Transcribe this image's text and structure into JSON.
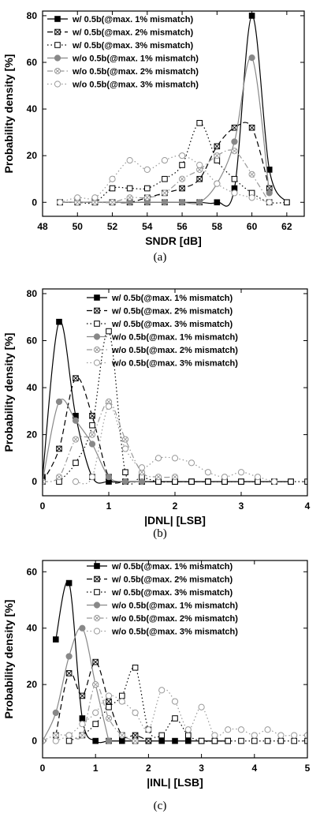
{
  "chart_data": [
    {
      "type": "line",
      "caption": "(a)",
      "xlabel": "SNDR [dB]",
      "ylabel": "Probability density [%]",
      "xlim": [
        48,
        63
      ],
      "ylim": [
        -6,
        82
      ],
      "xticks": [
        48,
        50,
        52,
        54,
        56,
        58,
        60,
        62
      ],
      "yticks": [
        0,
        20,
        40,
        60,
        80
      ],
      "xtick_labels": [
        "48",
        "50",
        "52",
        "54",
        "56",
        "58",
        "60",
        "62"
      ],
      "ytick_labels": [
        "0",
        "20",
        "40",
        "60",
        "80"
      ],
      "legend_position": "top-left",
      "series": [
        {
          "name": "w/ 0.5b(@max. 1% mismatch)",
          "line": "solid",
          "color": "#000000",
          "marker": "square-filled",
          "x": [
            49,
            50,
            51,
            52,
            53,
            54,
            55,
            56,
            57,
            58,
            59,
            60,
            61,
            62
          ],
          "y": [
            0,
            0,
            0,
            0,
            0,
            0,
            0,
            0,
            0,
            0,
            6,
            80,
            14,
            0
          ]
        },
        {
          "name": "w/ 0.5b(@max. 2% mismatch)",
          "line": "dashed",
          "color": "#000000",
          "marker": "square-x",
          "x": [
            49,
            50,
            51,
            52,
            53,
            54,
            55,
            56,
            57,
            58,
            59,
            60,
            61
          ],
          "y": [
            0,
            0,
            0,
            0,
            0,
            2,
            4,
            6,
            10,
            24,
            32,
            32,
            6
          ]
        },
        {
          "name": "w/ 0.5b(@max. 3% mismatch)",
          "line": "dotted",
          "color": "#000000",
          "marker": "square-open",
          "x": [
            49,
            50,
            51,
            52,
            53,
            54,
            55,
            56,
            57,
            58,
            59,
            60,
            61,
            62
          ],
          "y": [
            0,
            0,
            0,
            6,
            6,
            6,
            10,
            16,
            34,
            18,
            10,
            4,
            0,
            0
          ]
        },
        {
          "name": "w/o 0.5b(@max. 1% mismatch)",
          "line": "solid",
          "color": "#888888",
          "marker": "circle-filled",
          "x": [
            49,
            50,
            51,
            52,
            53,
            54,
            55,
            56,
            57,
            58,
            59,
            60,
            61
          ],
          "y": [
            0,
            0,
            0,
            0,
            0,
            0,
            0,
            0,
            0,
            8,
            26,
            62,
            4
          ]
        },
        {
          "name": "w/o 0.5b(@max. 2% mismatch)",
          "line": "dashdot",
          "color": "#999999",
          "marker": "circle-x",
          "x": [
            49,
            50,
            51,
            52,
            53,
            54,
            55,
            56,
            57,
            58,
            59,
            60,
            61
          ],
          "y": [
            0,
            0,
            0,
            0,
            2,
            2,
            4,
            10,
            14,
            20,
            22,
            12,
            0
          ]
        },
        {
          "name": "w/o 0.5b(@max. 3% mismatch)",
          "line": "dotted",
          "color": "#999999",
          "marker": "circle-open",
          "x": [
            49,
            50,
            51,
            52,
            53,
            54,
            55,
            56,
            57,
            58,
            59,
            60,
            61
          ],
          "y": [
            0,
            2,
            2,
            10,
            18,
            14,
            18,
            20,
            16,
            8,
            4,
            2,
            0
          ]
        }
      ]
    },
    {
      "type": "line",
      "caption": "(b)",
      "xlabel": "|DNL| [LSB]",
      "ylabel": "Probability density [%]",
      "xlim": [
        0,
        4
      ],
      "ylim": [
        -6,
        82
      ],
      "xticks": [
        0,
        1,
        2,
        3,
        4
      ],
      "yticks": [
        0,
        20,
        40,
        60,
        80
      ],
      "xtick_labels": [
        "0",
        "1",
        "2",
        "3",
        "4"
      ],
      "ytick_labels": [
        "0",
        "20",
        "40",
        "60",
        "80"
      ],
      "legend_position": "top-right",
      "series": [
        {
          "name": "w/ 0.5b(@max. 1% mismatch)",
          "line": "solid",
          "color": "#000000",
          "marker": "square-filled",
          "x": [
            0,
            0.25,
            0.5,
            0.75,
            1.0,
            1.25,
            1.5,
            1.75,
            2.0,
            2.25,
            2.5,
            2.75,
            3.0,
            3.25,
            3.5,
            3.75
          ],
          "y": [
            2,
            68,
            28,
            2,
            0,
            0,
            0,
            0,
            0,
            0,
            0,
            0,
            0,
            0,
            0,
            0
          ]
        },
        {
          "name": "w/ 0.5b(@max. 2% mismatch)",
          "line": "dashed",
          "color": "#000000",
          "marker": "square-x",
          "x": [
            0,
            0.25,
            0.5,
            0.75,
            1.0,
            1.25,
            1.5,
            1.75,
            2.0,
            2.25,
            2.5
          ],
          "y": [
            0,
            14,
            44,
            28,
            2,
            0,
            0,
            0,
            0,
            0,
            0
          ]
        },
        {
          "name": "w/ 0.5b(@max. 3% mismatch)",
          "line": "dotted",
          "color": "#000000",
          "marker": "square-open",
          "x": [
            0.25,
            0.5,
            0.75,
            1.0,
            1.25,
            1.5,
            1.75,
            2.0,
            2.25,
            2.5,
            2.75,
            3.0,
            3.25,
            3.5,
            3.75,
            4.0
          ],
          "y": [
            0,
            8,
            24,
            64,
            4,
            2,
            0,
            0,
            0,
            0,
            0,
            0,
            0,
            0,
            0,
            0
          ]
        },
        {
          "name": "w/o 0.5b(@max. 1% mismatch)",
          "line": "solid",
          "color": "#888888",
          "marker": "circle-filled",
          "x": [
            0,
            0.25,
            0.5,
            0.75,
            1.0,
            1.25,
            1.5
          ],
          "y": [
            0,
            34,
            26,
            16,
            2,
            0,
            0
          ]
        },
        {
          "name": "w/o 0.5b(@max. 2% mismatch)",
          "line": "dashdot",
          "color": "#999999",
          "marker": "circle-x",
          "x": [
            0,
            0.25,
            0.5,
            0.75,
            1.0,
            1.25,
            1.5,
            1.75,
            2.0
          ],
          "y": [
            0,
            2,
            18,
            20,
            34,
            18,
            4,
            2,
            2
          ]
        },
        {
          "name": "w/o 0.5b(@max. 3% mismatch)",
          "line": "dotted",
          "color": "#999999",
          "marker": "circle-open",
          "x": [
            0.5,
            0.75,
            1.0,
            1.25,
            1.5,
            1.75,
            2.0,
            2.25,
            2.5,
            2.75,
            3.0,
            3.25,
            3.5
          ],
          "y": [
            0,
            2,
            32,
            14,
            6,
            10,
            10,
            8,
            4,
            2,
            4,
            2,
            0
          ]
        }
      ]
    },
    {
      "type": "line",
      "caption": "(c)",
      "xlabel": "|INL| [LSB]",
      "ylabel": "Probability density [%]",
      "xlim": [
        0,
        5
      ],
      "ylim": [
        -6,
        64
      ],
      "xticks": [
        0,
        1,
        2,
        3,
        4,
        5
      ],
      "yticks": [
        0,
        20,
        40,
        60
      ],
      "xtick_labels": [
        "0",
        "1",
        "2",
        "3",
        "4",
        "5"
      ],
      "ytick_labels": [
        "0",
        "20",
        "40",
        "60"
      ],
      "legend_position": "top-right",
      "series": [
        {
          "name": "w/ 0.5b(@max. 1% mismatch)",
          "line": "solid",
          "color": "#000000",
          "marker": "square-filled",
          "x": [
            0.25,
            0.5,
            0.75,
            1.0,
            1.25,
            1.5,
            1.75,
            2.0,
            2.25,
            2.5,
            2.75,
            3.0,
            3.25,
            3.5
          ],
          "y": [
            36,
            56,
            8,
            0,
            0,
            0,
            0,
            0,
            0,
            0,
            0,
            0,
            0,
            0
          ]
        },
        {
          "name": "w/ 0.5b(@max. 2% mismatch)",
          "line": "dashed",
          "color": "#000000",
          "marker": "square-x",
          "x": [
            0.25,
            0.5,
            0.75,
            1.0,
            1.25,
            1.5,
            1.75,
            2.0
          ],
          "y": [
            2,
            24,
            16,
            28,
            14,
            2,
            2,
            0
          ]
        },
        {
          "name": "w/ 0.5b(@max. 3% mismatch)",
          "line": "dotted",
          "color": "#000000",
          "marker": "square-open",
          "x": [
            0.5,
            0.75,
            1.0,
            1.25,
            1.5,
            1.75,
            2.0,
            2.25,
            2.5,
            2.75,
            3.0,
            3.25,
            3.5,
            3.75,
            4.0,
            4.25,
            4.5,
            4.75,
            5.0
          ],
          "y": [
            0,
            2,
            6,
            12,
            16,
            26,
            4,
            2,
            8,
            2,
            0,
            0,
            0,
            0,
            0,
            0,
            0,
            0,
            0
          ]
        },
        {
          "name": "w/o 0.5b(@max. 1% mismatch)",
          "line": "solid",
          "color": "#888888",
          "marker": "circle-filled",
          "x": [
            0,
            0.25,
            0.5,
            0.75,
            1.0,
            1.25
          ],
          "y": [
            0,
            10,
            30,
            40,
            20,
            0
          ]
        },
        {
          "name": "w/o 0.5b(@max. 2% mismatch)",
          "line": "dashdot",
          "color": "#999999",
          "marker": "circle-x",
          "x": [
            0,
            0.25,
            0.5,
            0.75,
            1.0,
            1.25,
            1.5,
            1.75
          ],
          "y": [
            0,
            2,
            2,
            2,
            20,
            8,
            2,
            0
          ]
        },
        {
          "name": "w/o 0.5b(@max. 3% mismatch)",
          "line": "dotted",
          "color": "#999999",
          "marker": "circle-open",
          "x": [
            0.25,
            0.5,
            0.75,
            1.0,
            1.25,
            1.5,
            1.75,
            2.0,
            2.25,
            2.5,
            2.75,
            3.0,
            3.25,
            3.5,
            3.75,
            4.0,
            4.25,
            4.5,
            4.75,
            5.0
          ],
          "y": [
            0,
            2,
            6,
            10,
            16,
            14,
            10,
            4,
            18,
            14,
            4,
            12,
            2,
            4,
            4,
            2,
            4,
            2,
            2,
            2
          ]
        }
      ]
    }
  ]
}
